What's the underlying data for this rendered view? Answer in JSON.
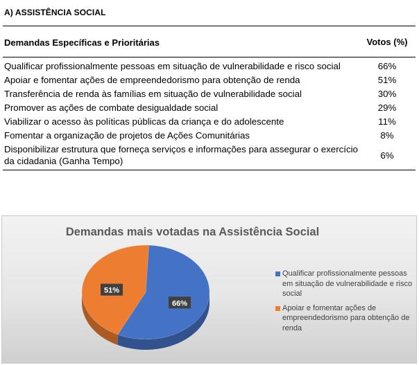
{
  "section": {
    "title": "A) ASSISTÊNCIA SOCIAL"
  },
  "table": {
    "headers": {
      "demand": "Demandas Específicas e Prioritárias",
      "votes": "Votos (%)"
    },
    "rows": [
      {
        "demand": "Qualificar profissionalmente pessoas em situação de vulnerabilidade e risco social",
        "votes": "66%"
      },
      {
        "demand": "Apoiar e fomentar ações de empreendedorismo para obtenção de renda",
        "votes": "51%"
      },
      {
        "demand": "Transferência de renda às famílias em situação de vulnerabilidade social",
        "votes": "30%"
      },
      {
        "demand": "Promover as ações de combate desigualdade social",
        "votes": "29%"
      },
      {
        "demand": "Viabilizar o acesso às políticas públicas da criança e do adolescente",
        "votes": "11%"
      },
      {
        "demand": "Fomentar a organização de projetos de Ações Comunitárias",
        "votes": "8%"
      },
      {
        "demand": "Disponibilizar estrutura que forneça serviços e informações para assegurar o exercício da cidadania (Ganha Tempo)",
        "votes": "6%"
      }
    ]
  },
  "chart_data": {
    "type": "pie",
    "title": "Demandas mais votadas na Assistência Social",
    "categories": [
      "Qualificar profissionalmente pessoas em situação de vulnerabilidade e risco social",
      "Apoiar e fomentar ações de empreendedorismo para obtenção de renda"
    ],
    "values": [
      66,
      51
    ],
    "data_labels": [
      "66%",
      "51%"
    ],
    "colors": [
      "#4472c4",
      "#ed7d31"
    ],
    "legend_position": "right"
  }
}
